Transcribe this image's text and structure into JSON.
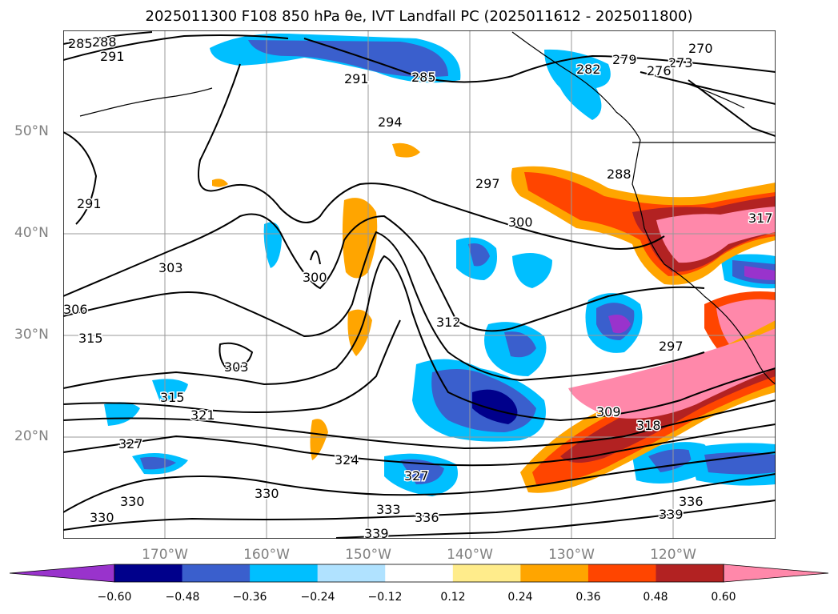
{
  "title": "2025011300 F108 850 hPa θe, IVT Landfall PC (2025011612 - 2025011800)",
  "lat_labels": [
    "50°N",
    "40°N",
    "30°N",
    "20°N"
  ],
  "lon_labels": [
    "170°W",
    "160°W",
    "150°W",
    "140°W",
    "130°W",
    "120°W"
  ],
  "colorbar": {
    "ticks": [
      "−0.60",
      "−0.48",
      "−0.36",
      "−0.24",
      "−0.12",
      "0.12",
      "0.24",
      "0.36",
      "0.48",
      "0.60"
    ],
    "colors": [
      "#9933cc",
      "#00008b",
      "#3a5fcd",
      "#00bfff",
      "#b0e2ff",
      "#ffffff",
      "#ffec8b",
      "#ffa500",
      "#ff4500",
      "#b22222",
      "#ff88aa"
    ],
    "extend": "both"
  },
  "contour_labels": [
    "285",
    "288",
    "291",
    "270",
    "273",
    "276",
    "279",
    "282",
    "285",
    "291",
    "294",
    "297",
    "288",
    "300",
    "291",
    "303",
    "300",
    "306",
    "315",
    "312",
    "303",
    "297",
    "315",
    "321",
    "309",
    "318",
    "327",
    "324",
    "327",
    "330",
    "330",
    "330",
    "333",
    "336",
    "339",
    "336",
    "339",
    "317"
  ]
}
